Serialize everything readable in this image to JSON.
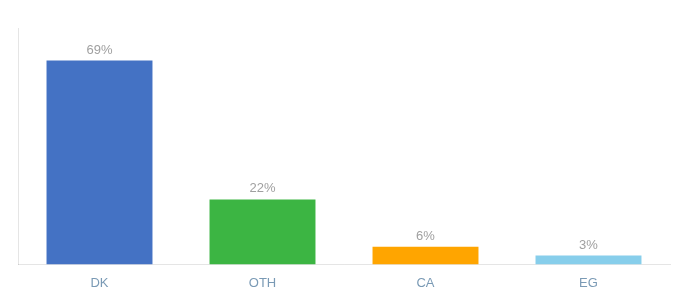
{
  "chart_data": {
    "type": "bar",
    "categories": [
      "DK",
      "OTH",
      "CA",
      "EG"
    ],
    "values": [
      69,
      22,
      6,
      3
    ],
    "value_labels": [
      "69%",
      "22%",
      "6%",
      "3%"
    ],
    "data_labels": true,
    "colors": [
      "#4472C4",
      "#3CB543",
      "#FFA500",
      "#87CEEB"
    ],
    "ylim": [
      0,
      80
    ],
    "grid": false,
    "tick_labels": "x"
  }
}
